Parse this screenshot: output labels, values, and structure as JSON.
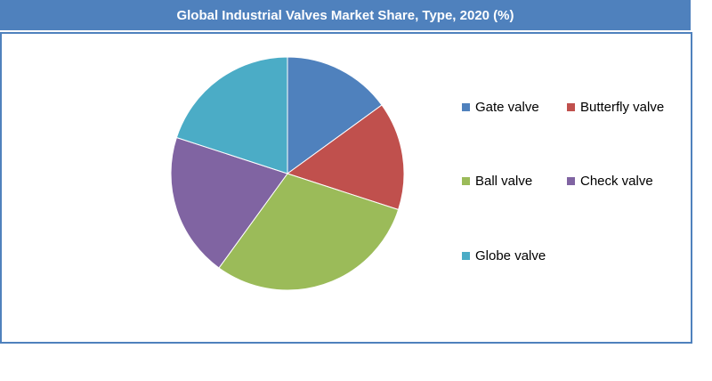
{
  "chart_data": {
    "type": "pie",
    "title": "Global Industrial Valves Market Share, Type, 2020 (%)",
    "categories": [
      "Gate valve",
      "Butterfly valve",
      "Ball valve",
      "Check valve",
      "Globe valve"
    ],
    "values": [
      15,
      15,
      30,
      20,
      20
    ],
    "colors": [
      "#4f81bd",
      "#c0504d",
      "#9bbb59",
      "#8064a2",
      "#4bacc6"
    ],
    "legend_position": "right"
  }
}
